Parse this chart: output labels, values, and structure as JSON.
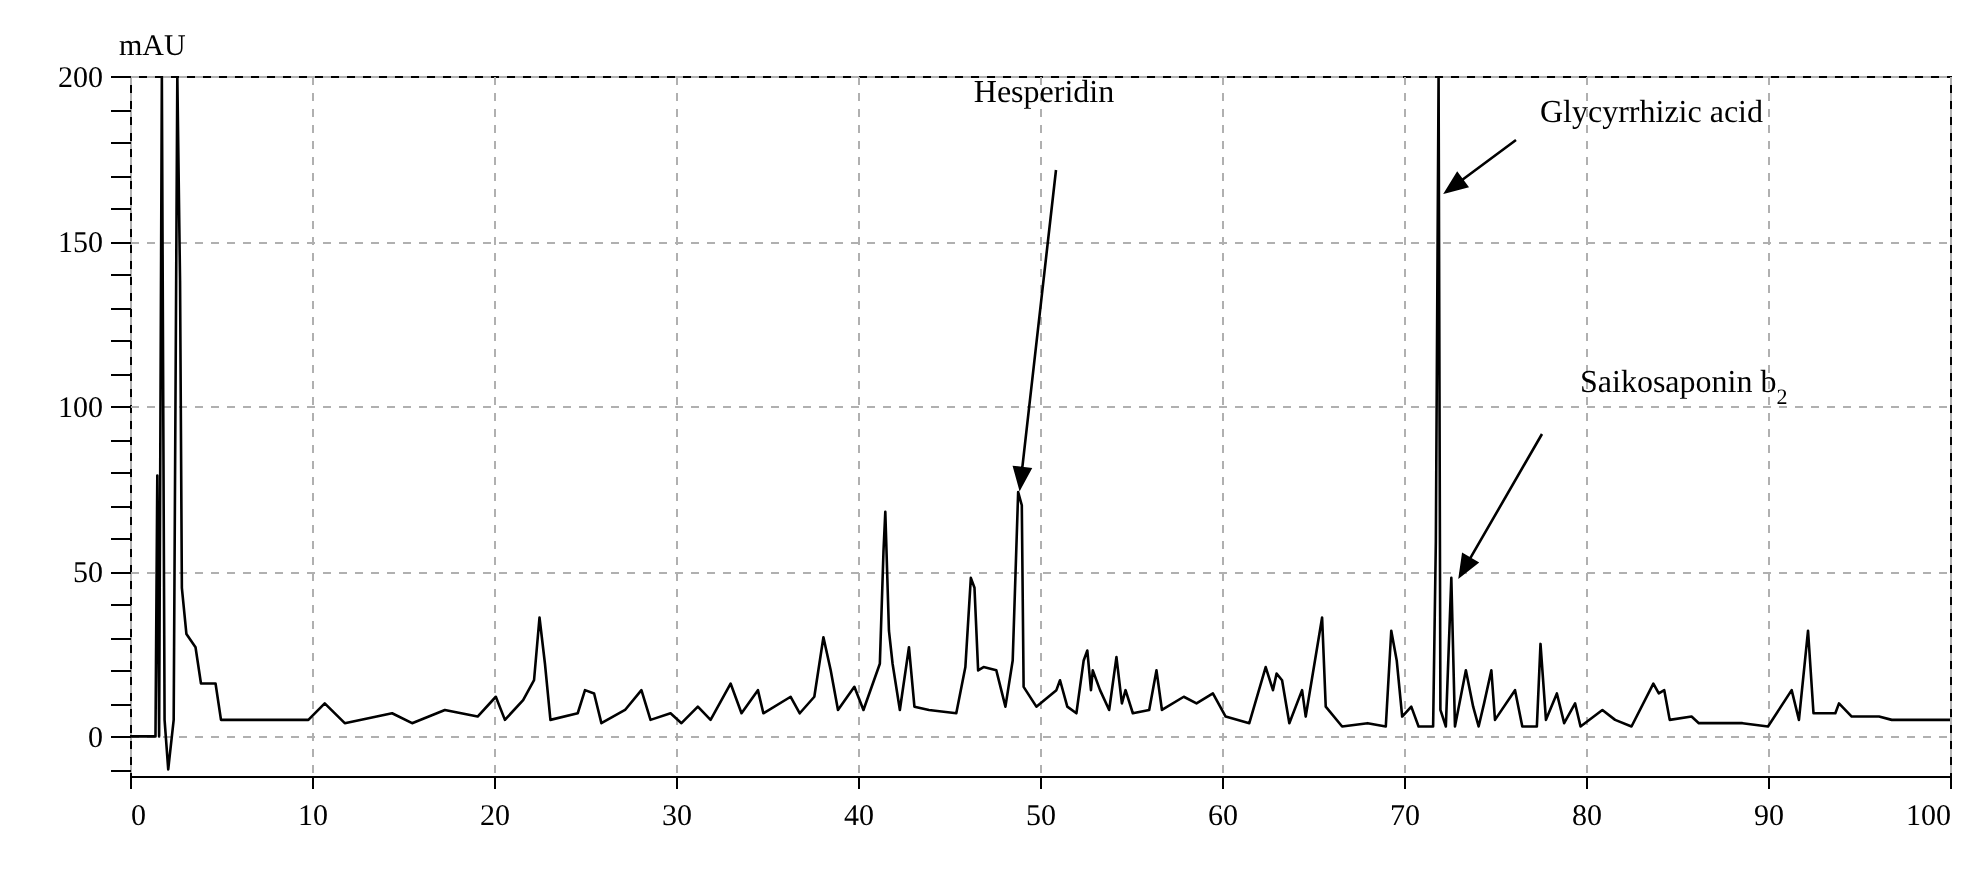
{
  "chart_data": {
    "type": "line",
    "ylabel": "mAU",
    "xlim": [
      0,
      100
    ],
    "ylim": [
      -12,
      200
    ],
    "xticks": [
      0,
      10,
      20,
      30,
      40,
      50,
      60,
      70,
      80,
      90,
      100
    ],
    "yticks": [
      {
        "value": -10,
        "label": null
      },
      0,
      {
        "value": 10,
        "label": null
      },
      {
        "value": 20,
        "label": null
      },
      {
        "value": 30,
        "label": null
      },
      {
        "value": 40,
        "label": null
      },
      50,
      {
        "value": 60,
        "label": null
      },
      {
        "value": 70,
        "label": null
      },
      {
        "value": 80,
        "label": null
      },
      {
        "value": 90,
        "label": null
      },
      100,
      {
        "value": 110,
        "label": null
      },
      {
        "value": 120,
        "label": null
      },
      {
        "value": 130,
        "label": null
      },
      {
        "value": 140,
        "label": null
      },
      150,
      {
        "value": 160,
        "label": null
      },
      {
        "value": 170,
        "label": null
      },
      {
        "value": 180,
        "label": null
      },
      {
        "value": 190,
        "label": null
      },
      200
    ],
    "grid": true,
    "line_style": "solid",
    "marker": "none",
    "annotations": [
      "Hesperidin",
      "Glycyrrhizic  acid",
      "Saikosaponin  b$_{2}$"
    ],
    "series": [
      {
        "color": "#000000",
        "x": [
          0,
          1.4,
          1.5,
          1.6,
          1.75,
          1.9,
          2.1,
          2.4,
          2.6,
          2.75,
          2.85,
          3.1,
          3.6,
          3.9,
          4.7,
          5.0,
          9.8,
          10.7,
          11.8,
          14.4,
          15.5,
          17.3,
          19.1,
          20.1,
          20.6,
          21.6,
          22.2,
          22.5,
          22.8,
          23.1,
          24.6,
          25.0,
          25.5,
          25.9,
          27.2,
          28.1,
          28.6,
          29.7,
          30.3,
          31.2,
          31.9,
          33.0,
          33.6,
          34.5,
          34.8,
          36.3,
          36.8,
          37.6,
          38.1,
          38.5,
          38.9,
          39.8,
          40.3,
          41.2,
          41.4,
          41.5,
          41.7,
          41.9,
          42.3,
          42.8,
          43.1,
          43.9,
          45.4,
          45.9,
          46.2,
          46.4,
          46.6,
          46.9,
          47.6,
          48.1,
          48.5,
          48.8,
          49.0,
          49.1,
          49.8,
          50.9,
          51.1,
          51.5,
          52.0,
          52.4,
          52.6,
          52.8,
          52.9,
          53.3,
          53.8,
          54.2,
          54.5,
          54.7,
          55.1,
          56.0,
          56.4,
          56.7,
          57.9,
          58.6,
          59.5,
          60.2,
          61.5,
          62.4,
          62.8,
          63.0,
          63.3,
          63.7,
          64.4,
          64.6,
          65.5,
          65.7,
          66.6,
          68.0,
          69.0,
          69.3,
          69.6,
          69.9,
          70.4,
          70.8,
          71.6,
          71.75,
          71.9,
          72.0,
          72.3,
          72.6,
          72.8,
          73.4,
          73.8,
          74.1,
          74.4,
          74.8,
          75.0,
          76.1,
          76.5,
          77.3,
          77.5,
          77.8,
          78.4,
          78.8,
          79.4,
          79.7,
          80.9,
          81.6,
          82.5,
          83.7,
          84.0,
          84.3,
          84.6,
          85.8,
          86.2,
          88.6,
          90.0,
          91.3,
          91.7,
          92.2,
          92.5,
          93.7,
          93.9,
          94.6,
          96.1,
          96.8,
          100
        ],
        "values": [
          0,
          0,
          79,
          0,
          200,
          5,
          -10,
          5,
          200,
          138,
          45,
          31,
          27,
          16,
          16,
          5,
          5,
          10,
          4,
          7,
          4,
          8,
          6,
          12,
          5,
          11,
          17,
          36,
          22,
          5,
          7,
          14,
          13,
          4,
          8,
          14,
          5,
          7,
          4,
          9,
          5,
          16,
          7,
          14,
          7,
          12,
          7,
          12,
          30,
          20,
          8,
          15,
          8,
          22,
          56,
          68,
          32,
          22,
          8,
          27,
          9,
          8,
          7,
          21,
          48,
          45,
          20,
          21,
          20,
          9,
          23,
          74,
          70,
          15,
          9,
          14,
          17,
          9,
          7,
          23,
          26,
          14,
          20,
          14,
          8,
          24,
          10,
          14,
          7,
          8,
          20,
          8,
          12,
          10,
          13,
          6,
          4,
          21,
          14,
          19,
          17,
          4,
          14,
          6,
          36,
          9,
          3,
          4,
          3,
          32,
          23,
          6,
          9,
          3,
          3,
          59,
          200,
          8,
          3,
          48,
          3,
          20,
          9,
          3,
          10,
          20,
          5,
          14,
          3,
          3,
          28,
          5,
          13,
          4,
          10,
          3,
          8,
          5,
          3,
          16,
          13,
          14,
          5,
          6,
          4,
          4,
          3,
          14,
          5,
          32,
          7,
          7,
          10,
          6,
          6,
          5,
          5
        ]
      }
    ]
  }
}
